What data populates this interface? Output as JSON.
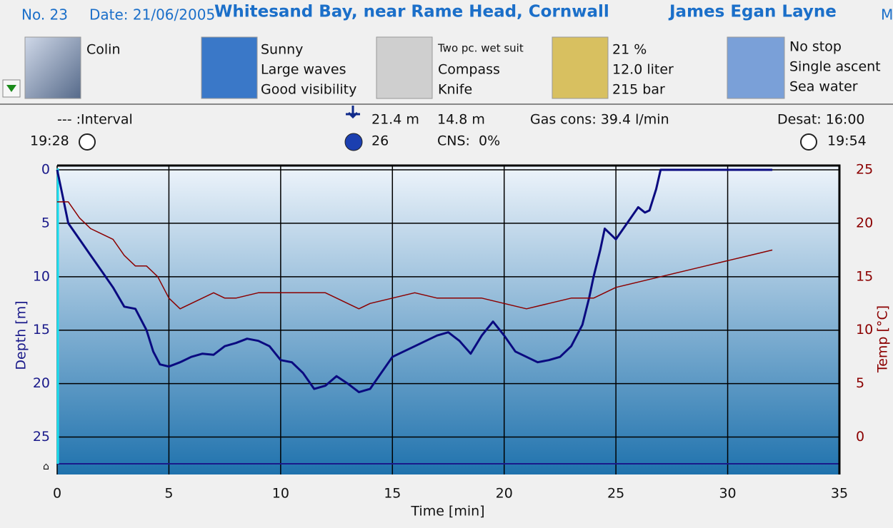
{
  "header": {
    "number": "No. 23",
    "date": "Date: 21/06/2005",
    "location": "Whitesand Bay, near Rame Head, Cornwall",
    "diver": "James Egan Layne",
    "cut": "M"
  },
  "panels": {
    "buddy": [
      "Colin"
    ],
    "weather": [
      "Sunny",
      "Large waves",
      "Good visibility"
    ],
    "equipment": [
      "Two pc. wet suit",
      "Compass",
      "Knife"
    ],
    "gas": [
      "21 %",
      "12.0 liter",
      "215 bar"
    ],
    "dive": [
      "No stop",
      "Single ascent",
      "Sea water"
    ]
  },
  "stats": {
    "interval": "--- :Interval",
    "start": "19:28",
    "max_depth": "21.4 m",
    "avg_depth": "14.8 m",
    "gas": "Gas cons: 39.4 l/min",
    "desat": "Desat: 16:00",
    "duration": "26",
    "cns": "CNS:  0%",
    "end": "19:54"
  },
  "chart_data": {
    "type": "line",
    "xlabel": "Time [min]",
    "ylabel": "Depth [m]",
    "y2label": "Temp [°C]",
    "xlim": [
      0,
      35
    ],
    "xticks": [
      0,
      5,
      10,
      15,
      20,
      25,
      30,
      35
    ],
    "ylim": [
      -0.4,
      28.5
    ],
    "y_inverted": true,
    "yticks": [
      0,
      5,
      10,
      15,
      20,
      25
    ],
    "y2lim": [
      -3.5,
      25.4
    ],
    "y2ticks": [
      0,
      5,
      10,
      15,
      20,
      25
    ],
    "grid": true,
    "series": [
      {
        "name": "Depth",
        "color": "#0a0a80",
        "x": [
          0,
          0.2,
          0.5,
          1,
          1.5,
          2,
          2.5,
          3,
          3.5,
          4,
          4.3,
          4.6,
          5,
          5.5,
          6,
          6.5,
          7,
          7.5,
          8,
          8.5,
          9,
          9.5,
          10,
          10.5,
          11,
          11.5,
          12,
          12.5,
          13,
          13.5,
          14,
          14.5,
          15,
          15.5,
          16,
          16.5,
          17,
          17.5,
          18,
          18.5,
          19,
          19.5,
          20,
          20.5,
          21,
          21.5,
          22,
          22.5,
          23,
          23.5,
          23.8,
          24,
          24.3,
          24.5,
          25,
          25.5,
          26,
          26.3,
          26.5,
          26.8,
          27,
          28,
          29,
          30,
          31,
          32
        ],
        "values": [
          0,
          2,
          5,
          6.5,
          8,
          9.5,
          11,
          12.8,
          13,
          15,
          17,
          18.2,
          18.4,
          18,
          17.5,
          17.2,
          17.3,
          16.5,
          16.2,
          15.8,
          16,
          16.5,
          17.8,
          18,
          19,
          20.5,
          20.2,
          19.3,
          20,
          20.8,
          20.5,
          19,
          17.5,
          17,
          16.5,
          16,
          15.5,
          15.2,
          16,
          17.2,
          15.5,
          14.2,
          15.5,
          17,
          17.5,
          18,
          17.8,
          17.5,
          16.5,
          14.5,
          12,
          10,
          7.5,
          5.5,
          6.5,
          5,
          3.5,
          4,
          3.8,
          1.8,
          0,
          0,
          0,
          0,
          0,
          0
        ]
      },
      {
        "name": "Temp",
        "color": "#8b0000",
        "axis": "y2",
        "x": [
          0,
          0.5,
          1,
          1.5,
          2,
          2.5,
          3,
          3.5,
          4,
          4.5,
          5,
          5.5,
          6,
          7,
          7.5,
          8,
          9,
          10,
          11,
          12,
          12.5,
          13,
          13.5,
          14,
          15,
          16,
          17,
          18,
          19,
          20,
          21,
          22,
          23,
          24,
          25,
          26,
          27,
          28,
          29,
          30,
          31,
          32
        ],
        "values": [
          22,
          22,
          20.5,
          19.5,
          19,
          18.5,
          17,
          16,
          16,
          15,
          13,
          12,
          12.5,
          13.5,
          13,
          13,
          13.5,
          13.5,
          13.5,
          13.5,
          13,
          12.5,
          12,
          12.5,
          13,
          13.5,
          13,
          13,
          13,
          12.5,
          12,
          12.5,
          13,
          13,
          14,
          14.5,
          15,
          15.5,
          16,
          16.5,
          17,
          17.5
        ]
      }
    ]
  }
}
